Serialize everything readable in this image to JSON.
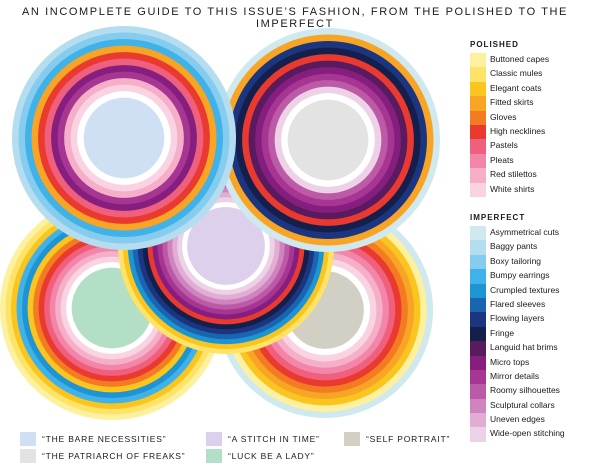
{
  "title": "AN INCOMPLETE GUIDE TO THIS ISSUE’S FASHION, FROM THE POLISHED TO THE IMPERFECT",
  "legend": {
    "polished_heading": "POLISHED",
    "imperfect_heading": "IMPERFECT",
    "polished": [
      {
        "label": "Buttoned capes",
        "color": "#fdf1a0"
      },
      {
        "label": "Classic mules",
        "color": "#fde468"
      },
      {
        "label": "Elegant coats",
        "color": "#fbc520"
      },
      {
        "label": "Fitted skirts",
        "color": "#f8a526"
      },
      {
        "label": "Gloves",
        "color": "#f37b22"
      },
      {
        "label": "High necklines",
        "color": "#ea3a30"
      },
      {
        "label": "Pastels",
        "color": "#ef5f7e"
      },
      {
        "label": "Pleats",
        "color": "#f285a8"
      },
      {
        "label": "Red stilettos",
        "color": "#f6afc9"
      },
      {
        "label": "White shirts",
        "color": "#fad3e2"
      }
    ],
    "imperfect": [
      {
        "label": "Asymmetrical cuts",
        "color": "#cfe9ee"
      },
      {
        "label": "Baggy pants",
        "color": "#b4def0"
      },
      {
        "label": "Boxy tailoring",
        "color": "#86ccee"
      },
      {
        "label": "Bumpy earrings",
        "color": "#40b2e8"
      },
      {
        "label": "Crumpled textures",
        "color": "#1d94d4"
      },
      {
        "label": "Flared sleeves",
        "color": "#1a64b0"
      },
      {
        "label": "Flowing layers",
        "color": "#1b3580"
      },
      {
        "label": "Fringe",
        "color": "#151f4c"
      },
      {
        "label": "Languid hat brims",
        "color": "#5a1a5e"
      },
      {
        "label": "Micro tops",
        "color": "#861e80"
      },
      {
        "label": "Mirror details",
        "color": "#a73592"
      },
      {
        "label": "Roomy silhouettes",
        "color": "#bd5aa8"
      },
      {
        "label": "Sculptural collars",
        "color": "#d084bf"
      },
      {
        "label": "Uneven edges",
        "color": "#e1add3"
      },
      {
        "label": "Wide-open stitching",
        "color": "#edd2e7"
      }
    ]
  },
  "footer": [
    {
      "label": "“THE BARE NECESSITIES”",
      "color": "#cfe0f4"
    },
    {
      "label": "“THE PATRIARCH OF FREAKS”",
      "color": "#e3e3e3"
    },
    {
      "label": "“A STITCH IN TIME”",
      "color": "#ddd0ec"
    },
    {
      "label": "“LUCK BE A LADY”",
      "color": "#b3dfc6"
    },
    {
      "label": "“SELF PORTRAIT”",
      "color": "#d2cfc4"
    }
  ],
  "circles": [
    {
      "name": "luck-be-a-lady-circle",
      "center_color": "#b3dfc6",
      "rings": [
        "#fdf1a0",
        "#fde468",
        "#fbc520",
        "#40b2e8",
        "#1d94d4",
        "#fbc520",
        "#f37b22",
        "#ea3a30",
        "#ef5f7e",
        "#f285a8",
        "#f6afc9",
        "#fad3e2",
        "#ffffff"
      ]
    },
    {
      "name": "self-portrait-circle",
      "center_color": "#d2cfc4",
      "rings": [
        "#cfe9ee",
        "#fdf1a0",
        "#fbc520",
        "#f8a526",
        "#f37b22",
        "#ea3a30",
        "#ef5f7e",
        "#f285a8",
        "#f6afc9",
        "#fad3e2",
        "#ffffff"
      ]
    },
    {
      "name": "a-stitch-in-time-circle",
      "center_color": "#ddd0ec",
      "rings": [
        "#fde468",
        "#fbc520",
        "#1d94d4",
        "#1a64b0",
        "#1b3580",
        "#151f4c",
        "#ea3a30",
        "#861e80",
        "#a73592",
        "#bd5aa8",
        "#d084bf",
        "#e1add3",
        "#edd2e7",
        "#ffffff"
      ]
    },
    {
      "name": "the-patriarch-of-freaks-circle",
      "center_color": "#e3e3e3",
      "rings": [
        "#cfe9ee",
        "#f8a526",
        "#1b3580",
        "#151f4c",
        "#ea3a30",
        "#5a1a5e",
        "#861e80",
        "#a73592",
        "#bd5aa8",
        "#edd2e7",
        "#ffffff"
      ]
    },
    {
      "name": "the-bare-necessities-circle",
      "center_color": "#cfe0f4",
      "rings": [
        "#b4def0",
        "#86ccee",
        "#40b2e8",
        "#f8a526",
        "#ea3a30",
        "#ef5f7e",
        "#861e80",
        "#a73592",
        "#f6afc9",
        "#fad3e2",
        "#ffffff"
      ]
    }
  ]
}
